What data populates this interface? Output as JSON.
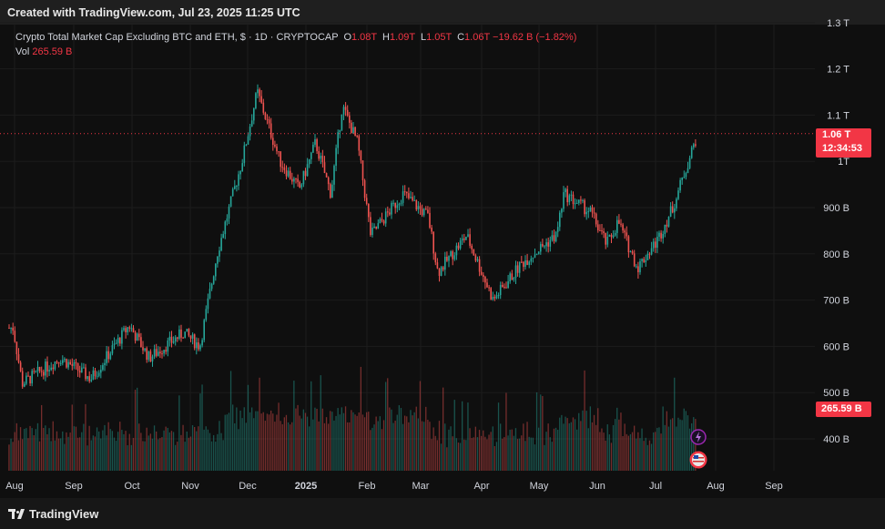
{
  "header": {
    "watermark_text": "Created with TradingView.com, Jul 23, 2025 11:25 UTC"
  },
  "legend": {
    "symbol_line": "Crypto Total Market Cap Excluding BTC and ETH, $ · 1D · CRYPTOCAP",
    "open_label": "O",
    "open_value": "1.08T",
    "high_label": "H",
    "high_value": "1.09T",
    "low_label": "L",
    "low_value": "1.05T",
    "close_label": "C",
    "close_value": "1.06T",
    "change": "−19.62 B (−1.82%)",
    "vol_label": "Vol",
    "vol_value": "265.59 B"
  },
  "badges": {
    "last_price": "1.06 T",
    "countdown": "12:34:53",
    "last_volume": "265.59 B"
  },
  "footer": {
    "brand": "TradingView"
  },
  "colors": {
    "up": "#26a69a",
    "down": "#ef5350",
    "badge": "#f23645",
    "background": "#0f0f0f",
    "grid": "#1c1c1c",
    "axis_text": "#d1d4dc"
  },
  "icons": [
    "lightning-event-icon",
    "us-flag-event-icon",
    "tradingview-logo-icon"
  ],
  "chart_data": {
    "type": "candlestick",
    "title": "Crypto Total Market Cap Excluding BTC and ETH",
    "interval": "1D",
    "y_axis": {
      "ticks": [
        "400 B",
        "500 B",
        "600 B",
        "700 B",
        "800 B",
        "900 B",
        "1T",
        "1.1 T",
        "1.2 T",
        "1.3 T"
      ],
      "tick_values": [
        400,
        500,
        600,
        700,
        800,
        900,
        1000,
        1100,
        1200,
        1300
      ],
      "unit": "B USD"
    },
    "x_axis": {
      "ticks": [
        "Aug",
        "Sep",
        "Oct",
        "Nov",
        "Dec",
        "2025",
        "Feb",
        "Mar",
        "Apr",
        "May",
        "Jun",
        "Jul",
        "Aug",
        "Sep"
      ]
    },
    "last_close": 1060,
    "grid": true,
    "series": [
      {
        "date": "2024-07",
        "close": 640
      },
      {
        "date": "2024-08-05",
        "close": 520
      },
      {
        "date": "2024-08-25",
        "close": 575
      },
      {
        "date": "2024-09-10",
        "close": 530
      },
      {
        "date": "2024-09-30",
        "close": 645
      },
      {
        "date": "2024-10-10",
        "close": 575
      },
      {
        "date": "2024-10-28",
        "close": 630
      },
      {
        "date": "2024-11-06",
        "close": 600
      },
      {
        "date": "2024-11-15",
        "close": 800
      },
      {
        "date": "2024-11-28",
        "close": 1000
      },
      {
        "date": "2024-12-06",
        "close": 1150
      },
      {
        "date": "2024-12-18",
        "close": 1000
      },
      {
        "date": "2024-12-28",
        "close": 940
      },
      {
        "date": "2025-01-06",
        "close": 1040
      },
      {
        "date": "2025-01-14",
        "close": 930
      },
      {
        "date": "2025-01-20",
        "close": 1120
      },
      {
        "date": "2025-01-28",
        "close": 1040
      },
      {
        "date": "2025-02-03",
        "close": 840
      },
      {
        "date": "2025-02-20",
        "close": 930
      },
      {
        "date": "2025-03-05",
        "close": 880
      },
      {
        "date": "2025-03-10",
        "close": 760
      },
      {
        "date": "2025-03-25",
        "close": 840
      },
      {
        "date": "2025-04-07",
        "close": 700
      },
      {
        "date": "2025-04-22",
        "close": 780
      },
      {
        "date": "2025-05-10",
        "close": 840
      },
      {
        "date": "2025-05-14",
        "close": 930
      },
      {
        "date": "2025-05-28",
        "close": 890
      },
      {
        "date": "2025-06-06",
        "close": 820
      },
      {
        "date": "2025-06-12",
        "close": 870
      },
      {
        "date": "2025-06-22",
        "close": 770
      },
      {
        "date": "2025-07-02",
        "close": 830
      },
      {
        "date": "2025-07-10",
        "close": 900
      },
      {
        "date": "2025-07-23",
        "close": 1060
      }
    ]
  }
}
